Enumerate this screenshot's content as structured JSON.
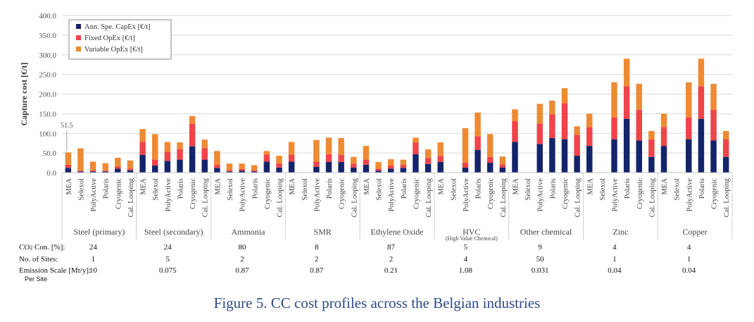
{
  "chart_data": {
    "type": "bar",
    "stacked": true,
    "ylabel": "Capture cost [€/t]",
    "ylim": [
      0,
      400
    ],
    "yticks": [
      "0.0",
      "50.0",
      "100.0",
      "150.0",
      "200.0",
      "250.0",
      "300.0",
      "350.0",
      "400.0"
    ],
    "annotation": "51.5",
    "legend_position": "top-left",
    "series": [
      {
        "name": "Ann. Spe. CapEx [€/t]",
        "color": "#14246b"
      },
      {
        "name": "Fixed OpEx [€/t]",
        "color": "#f0434a"
      },
      {
        "name": "Variable OpEx [€/t]",
        "color": "#ee8a33"
      }
    ],
    "groups": [
      {
        "name": "Steel (primary)",
        "sub": "",
        "co2": "24",
        "sites": "1",
        "scale": "10",
        "bars": [
          {
            "c": "MEA",
            "v": [
              12,
              8,
              31.5
            ]
          },
          {
            "c": "Selexol",
            "v": [
              3,
              2,
              57
            ]
          },
          {
            "c": "PolyActive",
            "v": [
              3,
              3,
              22
            ]
          },
          {
            "c": "Polaris",
            "v": [
              3,
              2,
              19
            ]
          },
          {
            "c": "Cryogenic",
            "v": [
              10,
              6,
              22
            ]
          },
          {
            "c": "Cal. Looping",
            "v": [
              6,
              4,
              21
            ]
          }
        ]
      },
      {
        "name": "Steel (secondary)",
        "sub": "",
        "co2": "24",
        "sites": "5",
        "scale": "0.075",
        "bars": [
          {
            "c": "MEA",
            "v": [
              45,
              33,
              33
            ]
          },
          {
            "c": "Selexol",
            "v": [
              18,
              15,
              65
            ]
          },
          {
            "c": "PolyActive",
            "v": [
              30,
              23,
              25
            ]
          },
          {
            "c": "Polaris",
            "v": [
              33,
              27,
              17
            ]
          },
          {
            "c": "Cryogenic",
            "v": [
              67,
              57,
              20
            ]
          },
          {
            "c": "Cal. Looping",
            "v": [
              33,
              29,
              22
            ]
          }
        ]
      },
      {
        "name": "Ammonia",
        "sub": "",
        "co2": "80",
        "sites": "2",
        "scale": "0.87",
        "bars": [
          {
            "c": "MEA",
            "v": [
              12,
              8,
              35
            ]
          },
          {
            "c": "Selexol",
            "v": [
              3,
              3,
              17
            ]
          },
          {
            "c": "PolyActive",
            "v": [
              5,
              4,
              14
            ]
          },
          {
            "c": "Polaris",
            "v": [
              3,
              3,
              13
            ]
          },
          {
            "c": "Cryogenic",
            "v": [
              28,
              18,
              9
            ]
          },
          {
            "c": "Cal. Looping",
            "v": [
              13,
              10,
              20
            ]
          }
        ]
      },
      {
        "name": "SMR",
        "sub": "",
        "co2": "8",
        "sites": "2",
        "scale": "0.87",
        "bars": [
          {
            "c": "MEA",
            "v": [
              28,
              18,
              32
            ]
          },
          {
            "c": "Selexol",
            "v": [
              0,
              0,
              0
            ]
          },
          {
            "c": "PolyActive",
            "v": [
              15,
              13,
              55
            ]
          },
          {
            "c": "Polaris",
            "v": [
              27,
              20,
              42
            ]
          },
          {
            "c": "Cryogenic",
            "v": [
              27,
              18,
              43
            ]
          },
          {
            "c": "Cal. Looping",
            "v": [
              13,
              10,
              17
            ]
          }
        ]
      },
      {
        "name": "Ethylene Oxide",
        "sub": "",
        "co2": "87",
        "sites": "2",
        "scale": "0.21",
        "bars": [
          {
            "c": "MEA",
            "v": [
              20,
              13,
              35
            ]
          },
          {
            "c": "Selexol",
            "v": [
              5,
              5,
              17
            ]
          },
          {
            "c": "PolyActive",
            "v": [
              10,
              8,
              16
            ]
          },
          {
            "c": "Polaris",
            "v": [
              12,
              8,
              13
            ]
          },
          {
            "c": "Cryogenic",
            "v": [
              47,
              30,
              12
            ]
          },
          {
            "c": "Cal. Looping",
            "v": [
              22,
              15,
              22
            ]
          }
        ]
      },
      {
        "name": "HVC",
        "sub": "(High Value Chemical)",
        "co2": "5",
        "sites": "4",
        "scale": "1.08",
        "bars": [
          {
            "c": "MEA",
            "v": [
              27,
              15,
              35
            ]
          },
          {
            "c": "Selexol",
            "v": [
              0,
              0,
              0
            ]
          },
          {
            "c": "PolyActive",
            "v": [
              13,
              12,
              88
            ]
          },
          {
            "c": "Polaris",
            "v": [
              58,
              35,
              60
            ]
          },
          {
            "c": "Cryogenic",
            "v": [
              25,
              15,
              58
            ]
          },
          {
            "c": "Cal. Looping",
            "v": [
              13,
              8,
              20
            ]
          }
        ]
      },
      {
        "name": "Other chemical",
        "sub": "",
        "co2": "9",
        "sites": "50",
        "scale": "0.031",
        "bars": [
          {
            "c": "MEA",
            "v": [
              78,
              53,
              30
            ]
          },
          {
            "c": "Selexol",
            "v": [
              0,
              0,
              0
            ]
          },
          {
            "c": "PolyActive",
            "v": [
              73,
              52,
              50
            ]
          },
          {
            "c": "Polaris",
            "v": [
              88,
              60,
              35
            ]
          },
          {
            "c": "Cryogenic",
            "v": [
              85,
              92,
              38
            ]
          },
          {
            "c": "Cal. Looping",
            "v": [
              43,
              53,
              22
            ]
          }
        ]
      },
      {
        "name": "Zinc",
        "sub": "",
        "co2": "4",
        "sites": "1",
        "scale": "0.04",
        "bars": [
          {
            "c": "MEA",
            "v": [
              68,
              48,
              34
            ]
          },
          {
            "c": "Selexol",
            "v": [
              0,
              0,
              0
            ]
          },
          {
            "c": "PolyActive",
            "v": [
              85,
              55,
              90
            ]
          },
          {
            "c": "Polaris",
            "v": [
              137,
              83,
              70
            ]
          },
          {
            "c": "Cryogenic",
            "v": [
              82,
              78,
              66
            ]
          },
          {
            "c": "Cal. Looping",
            "v": [
              40,
              45,
              21
            ]
          }
        ]
      },
      {
        "name": "Copper",
        "sub": "",
        "co2": "4",
        "sites": "1",
        "scale": "0.04",
        "bars": [
          {
            "c": "MEA",
            "v": [
              68,
              48,
              34
            ]
          },
          {
            "c": "Selexol",
            "v": [
              0,
              0,
              0
            ]
          },
          {
            "c": "PolyActive",
            "v": [
              85,
              55,
              90
            ]
          },
          {
            "c": "Polaris",
            "v": [
              137,
              83,
              70
            ]
          },
          {
            "c": "Cryogenic",
            "v": [
              82,
              78,
              66
            ]
          },
          {
            "c": "Cal. Looping",
            "v": [
              40,
              45,
              21
            ]
          }
        ]
      }
    ]
  },
  "table": {
    "co2_label": "CO",
    "co2_sub": "2",
    "co2_label_rest": " Con. [%]:",
    "sites_label": "No. of Sites:",
    "scale_label": "Emission Scale [Mt/y]:",
    "scale_label2": "Per Site"
  },
  "caption": "Figure 5. CC cost profiles across the Belgian industries"
}
